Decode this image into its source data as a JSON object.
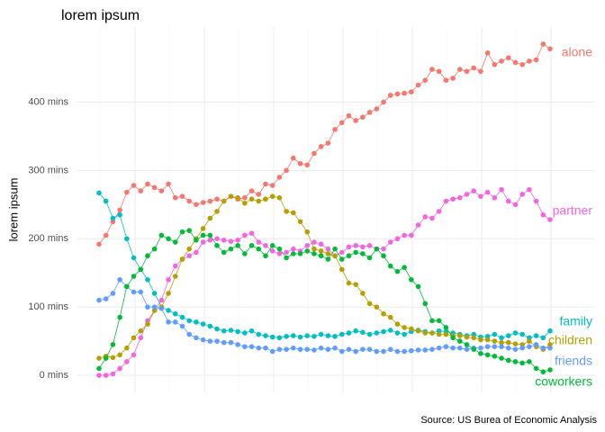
{
  "chart_data": {
    "type": "line",
    "title": "lorem ipsum",
    "y_label": "lorem ipsum",
    "caption": "Source: US Burea of Economic Analysis",
    "categories": [
      null,
      null,
      null,
      null,
      null,
      null,
      null,
      null,
      null,
      null,
      null,
      null,
      null,
      null,
      null,
      null,
      null,
      null,
      null,
      null,
      null,
      null,
      null,
      null,
      null,
      null,
      null,
      null,
      null,
      null,
      null,
      null,
      null,
      null,
      null,
      null,
      null,
      null,
      null,
      null,
      null,
      null,
      null,
      null,
      null,
      null,
      null,
      null,
      null,
      null,
      null,
      null,
      null,
      null,
      null,
      null,
      null,
      null,
      null,
      null,
      null,
      null,
      null,
      null,
      null,
      null
    ],
    "ylim": [
      -25,
      510
    ],
    "yticks": [
      {
        "value": 0,
        "label": "0 mins"
      },
      {
        "value": 100,
        "label": "100 mins"
      },
      {
        "value": 200,
        "label": "200 mins"
      },
      {
        "value": 300,
        "label": "300 mins"
      },
      {
        "value": 400,
        "label": "400 mins"
      }
    ],
    "grid": true,
    "series": [
      {
        "name": "alone",
        "color": "#F8766D",
        "values": [
          192,
          205,
          225,
          242,
          268,
          278,
          270,
          280,
          275,
          270,
          280,
          260,
          262,
          255,
          250,
          253,
          255,
          258,
          255,
          262,
          258,
          260,
          270,
          265,
          280,
          278,
          290,
          300,
          318,
          310,
          308,
          325,
          335,
          340,
          360,
          370,
          380,
          373,
          378,
          385,
          390,
          400,
          410,
          412,
          413,
          415,
          425,
          432,
          448,
          445,
          432,
          435,
          448,
          445,
          450,
          445,
          472,
          455,
          460,
          465,
          458,
          455,
          460,
          462,
          485,
          478
        ]
      },
      {
        "name": "partner",
        "color": "#F564E3",
        "values": [
          0,
          0,
          2,
          10,
          20,
          30,
          55,
          80,
          95,
          110,
          140,
          160,
          170,
          175,
          180,
          195,
          198,
          200,
          198,
          196,
          198,
          205,
          208,
          195,
          190,
          182,
          178,
          180,
          185,
          182,
          190,
          195,
          192,
          185,
          175,
          180,
          188,
          190,
          188,
          190,
          185,
          185,
          195,
          200,
          205,
          205,
          220,
          232,
          230,
          240,
          255,
          258,
          260,
          265,
          270,
          262,
          268,
          260,
          272,
          255,
          250,
          265,
          272,
          255,
          235,
          228
        ]
      },
      {
        "name": "family",
        "color": "#00BFC4",
        "values": [
          267,
          255,
          230,
          235,
          200,
          172,
          155,
          140,
          120,
          100,
          95,
          90,
          85,
          80,
          78,
          75,
          72,
          68,
          65,
          66,
          64,
          62,
          65,
          60,
          58,
          56,
          55,
          57,
          58,
          56,
          58,
          57,
          60,
          58,
          57,
          60,
          62,
          65,
          63,
          60,
          62,
          64,
          66,
          62,
          60,
          64,
          66,
          64,
          62,
          65,
          64,
          62,
          60,
          58,
          60,
          56,
          57,
          60,
          55,
          58,
          62,
          60,
          55,
          58,
          55,
          65
        ]
      },
      {
        "name": "children",
        "color": "#B79F00",
        "values": [
          25,
          28,
          26,
          30,
          40,
          55,
          65,
          75,
          95,
          100,
          120,
          145,
          170,
          185,
          200,
          215,
          230,
          240,
          255,
          262,
          260,
          252,
          258,
          255,
          258,
          262,
          260,
          240,
          238,
          225,
          210,
          185,
          182,
          178,
          175,
          155,
          135,
          133,
          120,
          105,
          100,
          90,
          85,
          75,
          70,
          68,
          65,
          62,
          62,
          60,
          60,
          58,
          58,
          56,
          55,
          52,
          52,
          50,
          48,
          48,
          46,
          45,
          50,
          42,
          38,
          45
        ]
      },
      {
        "name": "friends",
        "color": "#619CFF",
        "values": [
          110,
          112,
          120,
          140,
          130,
          122,
          122,
          100,
          100,
          98,
          78,
          78,
          72,
          60,
          55,
          52,
          50,
          50,
          48,
          48,
          45,
          42,
          42,
          40,
          40,
          35,
          38,
          38,
          40,
          38,
          38,
          37,
          40,
          38,
          40,
          35,
          38,
          35,
          38,
          38,
          35,
          35,
          38,
          35,
          35,
          36,
          37,
          37,
          38,
          40,
          42,
          40,
          40,
          38,
          40,
          40,
          42,
          42,
          42,
          40,
          38,
          40,
          42,
          45,
          40,
          40
        ]
      },
      {
        "name": "coworkers",
        "color": "#00BA38",
        "values": [
          10,
          25,
          45,
          85,
          130,
          145,
          155,
          175,
          185,
          205,
          200,
          195,
          210,
          212,
          198,
          205,
          205,
          190,
          180,
          185,
          190,
          178,
          190,
          185,
          175,
          190,
          185,
          172,
          178,
          178,
          182,
          178,
          175,
          170,
          185,
          170,
          175,
          180,
          178,
          172,
          185,
          175,
          160,
          152,
          158,
          140,
          130,
          105,
          80,
          80,
          70,
          55,
          50,
          45,
          38,
          32,
          30,
          28,
          25,
          22,
          20,
          18,
          20,
          10,
          5,
          8
        ]
      }
    ]
  }
}
